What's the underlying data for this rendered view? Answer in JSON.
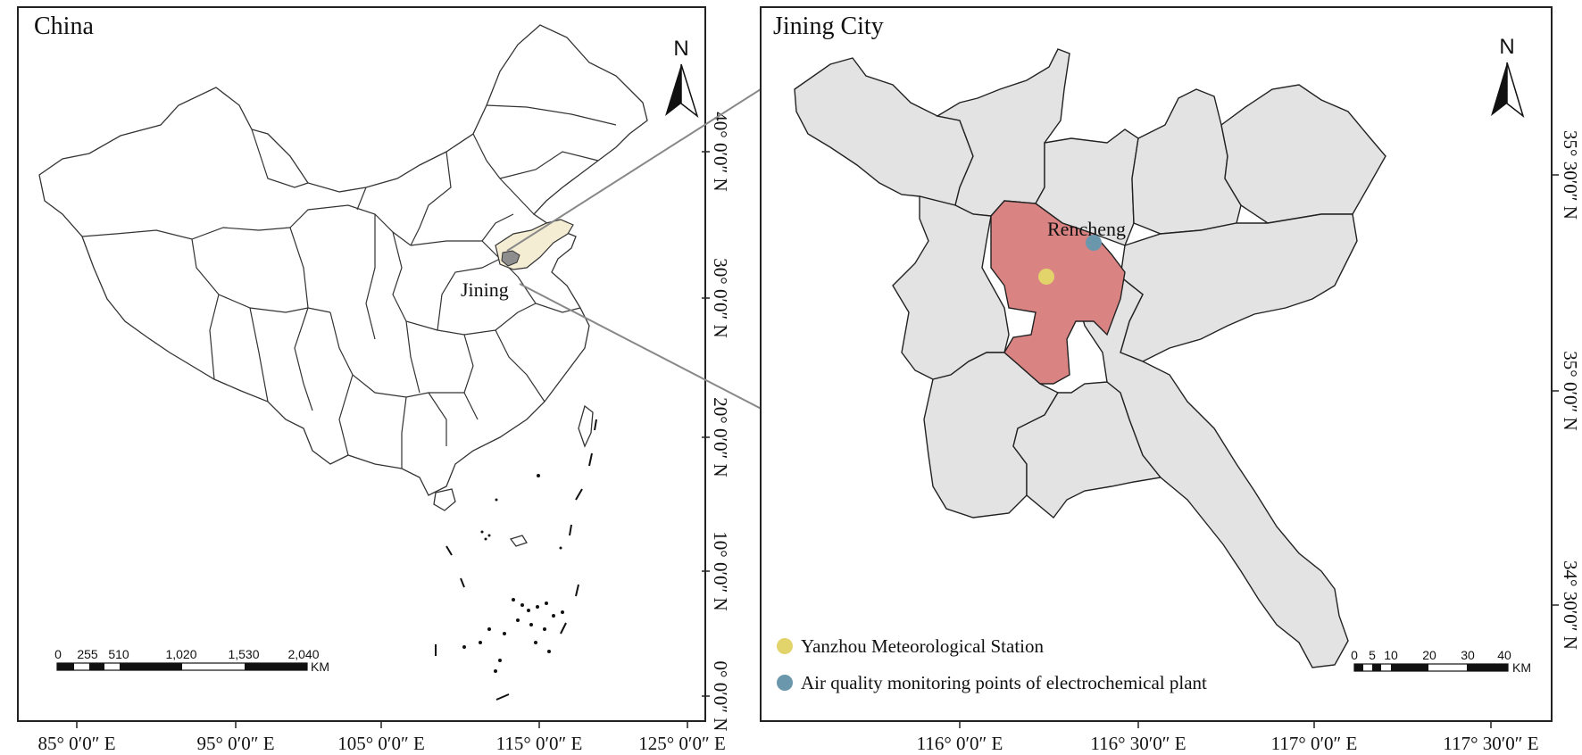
{
  "china_panel": {
    "title": "China",
    "highlight_label": "Jining",
    "province_highlight_color": "#f4ecd3",
    "city_highlight_color": "#8e8e8e",
    "x_ticks": [
      "85° 0′0″ E",
      "95° 0′0″ E",
      "105° 0′0″ E",
      "115° 0′0″ E",
      "125° 0′0″ E"
    ],
    "y_ticks": [
      "40° 0′0″ N",
      "30° 0′0″ N",
      "20° 0′0″ N",
      "10° 0′0″ N",
      "0° 0′0″ N"
    ],
    "scale_bar": {
      "labels": [
        "0",
        "255",
        "510",
        "1,020",
        "1,530",
        "2,040"
      ],
      "unit": "KM"
    },
    "north": "N"
  },
  "jining_panel": {
    "title": "Jining City",
    "district_label": "Rencheng",
    "district_color": "#d98383",
    "other_district_color": "#e3e3e3",
    "x_ticks": [
      "116° 0′0″ E",
      "116° 30′0″ E",
      "117° 0′0″ E",
      "117° 30′0″ E"
    ],
    "y_ticks": [
      "35° 30′0″ N",
      "35° 0′0″ N",
      "34° 30′0″ N"
    ],
    "scale_bar": {
      "labels": [
        "0",
        "5",
        "10",
        "20",
        "30",
        "40"
      ],
      "unit": "KM"
    },
    "north": "N",
    "legend": [
      {
        "label": "Yanzhou Meteorological Station",
        "color": "#e2d36a"
      },
      {
        "label": "Air quality monitoring points of electrochemical plant",
        "color": "#6b97ac"
      }
    ]
  }
}
